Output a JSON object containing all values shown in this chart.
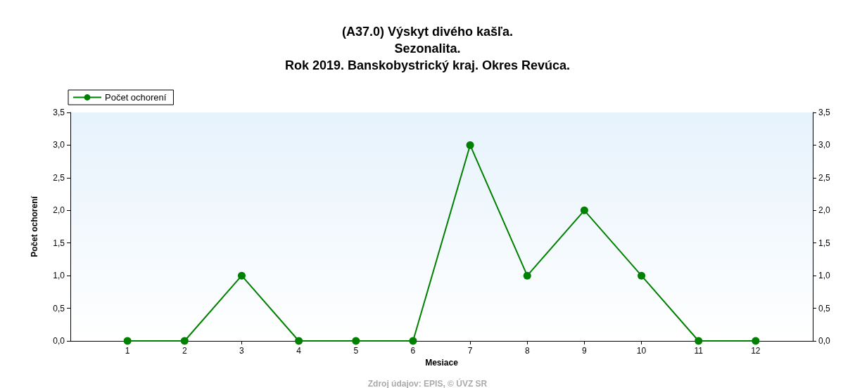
{
  "chart_data": {
    "type": "line",
    "title": "(A37.0) Výskyt divého kašľa.\nSezonalita.\nRok 2019. Banskobystrický kraj. Okres Revúca.",
    "xlabel": "Mesiace",
    "ylabel": "Počet ochorení",
    "x": [
      1,
      2,
      3,
      4,
      5,
      6,
      7,
      8,
      9,
      10,
      11,
      12
    ],
    "series": [
      {
        "name": "Počet ochorení",
        "color": "#008000",
        "values": [
          0,
          0,
          1,
          0,
          0,
          0,
          3,
          1,
          2,
          1,
          0,
          0
        ]
      }
    ],
    "xlim": [
      0,
      13
    ],
    "xticks": [
      1,
      2,
      3,
      4,
      5,
      6,
      7,
      8,
      9,
      10,
      11,
      12
    ],
    "ylim": [
      0,
      3.5
    ],
    "yticks": [
      {
        "value": 0,
        "label": "0,0"
      },
      {
        "value": 0.5,
        "label": "0,5"
      },
      {
        "value": 1,
        "label": "1,0"
      },
      {
        "value": 1.5,
        "label": "1,5"
      },
      {
        "value": 2,
        "label": "2,0"
      },
      {
        "value": 2.5,
        "label": "2,5"
      },
      {
        "value": 3,
        "label": "3,0"
      },
      {
        "value": 3.5,
        "label": "3,5"
      }
    ],
    "y2lim": [
      0,
      3.5
    ],
    "y2ticks": [
      {
        "value": 0,
        "label": "0,0"
      },
      {
        "value": 0.5,
        "label": "0,5"
      },
      {
        "value": 1,
        "label": "1,0"
      },
      {
        "value": 1.5,
        "label": "1,5"
      },
      {
        "value": 2,
        "label": "2,0"
      },
      {
        "value": 2.5,
        "label": "2,5"
      },
      {
        "value": 3,
        "label": "3,0"
      },
      {
        "value": 3.5,
        "label": "3,5"
      }
    ],
    "grid": false,
    "legend": "top left",
    "marker": "circle",
    "line_style": "solid",
    "annotations": [
      "Zdroj údajov: EPIS, © ÚVZ SR"
    ]
  }
}
